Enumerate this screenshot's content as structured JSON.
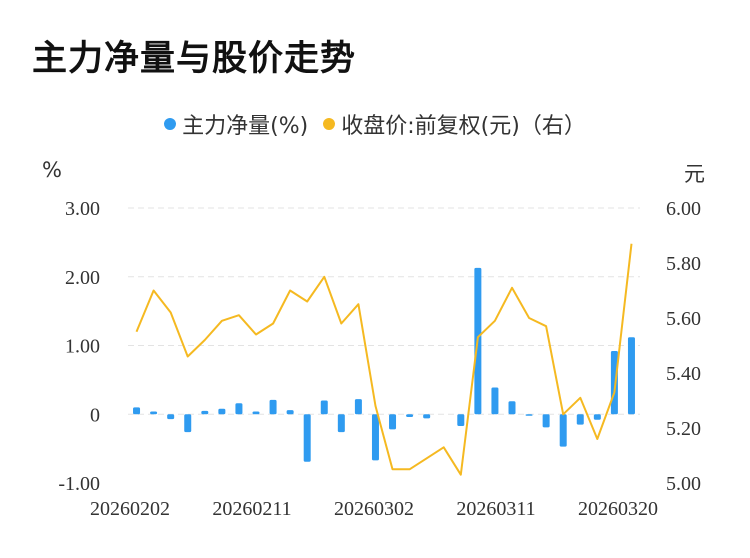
{
  "title": "主力净量与股价走势",
  "legend": {
    "bar_label": "主力净量(%)",
    "line_label": "收盘价:前复权(元)（右）"
  },
  "units": {
    "left": "%",
    "right": "元"
  },
  "colors": {
    "bar": "#2f9bf0",
    "line": "#f5b921",
    "grid": "#e3e3e3"
  },
  "chart_data": {
    "type": "bar+line",
    "title": "主力净量与股价走势",
    "x_tick_labels": [
      "20260202",
      "20260211",
      "20260302",
      "20260311",
      "20260320"
    ],
    "left_axis": {
      "unit": "%",
      "ylim": [
        -1.0,
        3.0
      ],
      "ticks": [
        "-1.00",
        "0",
        "1.00",
        "2.00",
        "3.00"
      ]
    },
    "right_axis": {
      "unit": "元",
      "ylim": [
        5.0,
        6.0
      ],
      "ticks": [
        "5.00",
        "5.20",
        "5.40",
        "5.60",
        "5.80",
        "6.00"
      ]
    },
    "grid": true,
    "legend_position": "top-center",
    "series": [
      {
        "name": "主力净量(%)",
        "type": "bar",
        "axis": "left",
        "values": [
          0.1,
          0.04,
          -0.07,
          -0.26,
          0.05,
          0.08,
          0.16,
          0.04,
          0.21,
          0.06,
          -0.69,
          0.2,
          -0.26,
          0.22,
          -0.67,
          -0.22,
          -0.04,
          -0.06,
          null,
          -0.17,
          2.13,
          0.39,
          0.19,
          -0.01,
          -0.19,
          -0.47,
          -0.15,
          -0.08,
          0.92,
          1.12
        ]
      },
      {
        "name": "收盘价:前复权(元)（右）",
        "type": "line",
        "axis": "right",
        "values": [
          5.55,
          5.7,
          5.62,
          5.46,
          5.52,
          5.59,
          5.61,
          5.54,
          5.58,
          5.7,
          5.66,
          5.75,
          5.58,
          5.65,
          5.28,
          5.05,
          5.05,
          5.09,
          5.13,
          5.03,
          5.53,
          5.59,
          5.71,
          5.6,
          5.57,
          5.25,
          5.31,
          5.16,
          5.33,
          5.87
        ]
      }
    ]
  }
}
